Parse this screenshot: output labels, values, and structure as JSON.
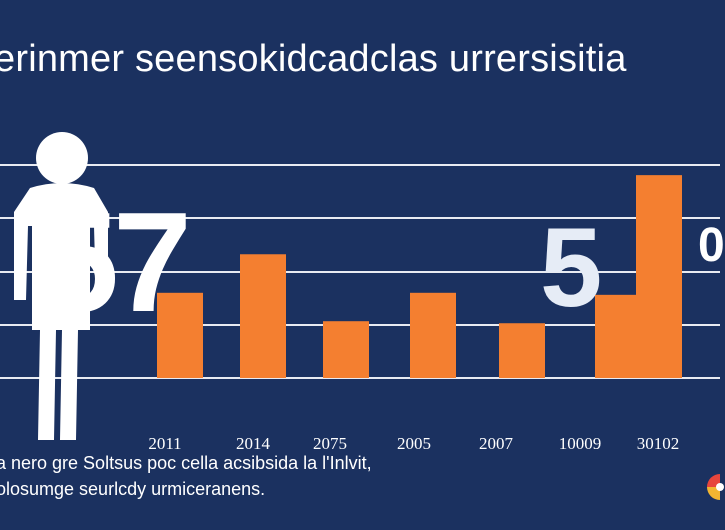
{
  "title": "erinmer seensokidcadclas urrersisitia",
  "caption": {
    "line1": "a nero gre Soltsus poc cella acsibsida la l'Inlvit,",
    "line2": "olosumge seurlcdy urmiceranens."
  },
  "overlay_numbers": {
    "left": "57",
    "right": "5",
    "edge": "0"
  },
  "icons": {
    "figure": "human-figure-icon",
    "corner": "color-wheel-icon"
  },
  "colors": {
    "background": "#1b3160",
    "bar": "#f47f30",
    "text": "#ffffff",
    "grid": "#e8ebf2"
  },
  "chart_data": {
    "type": "bar",
    "title": "erinmer seensokidcadclas urrersisitia",
    "categories": [
      "2011",
      "2014",
      "2075",
      "2005",
      "2007",
      "10009",
      "30102"
    ],
    "values": [
      42,
      61,
      28,
      42,
      27,
      41,
      100
    ],
    "ylim": [
      0,
      105
    ],
    "grid": true,
    "legend": "none"
  }
}
